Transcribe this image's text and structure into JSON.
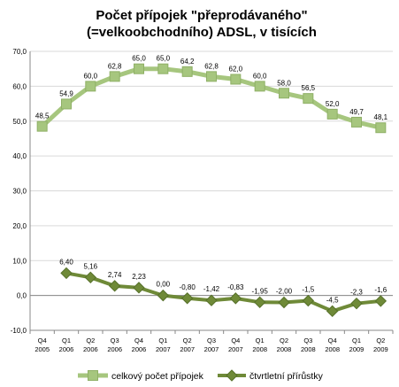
{
  "chart_data": {
    "type": "line",
    "title": [
      "Počet  přípojek \"přeprodávaného\"",
      "(=velkoobchodního) ADSL, v tisících"
    ],
    "categories": [
      [
        "Q4",
        "2005"
      ],
      [
        "Q1",
        "2006"
      ],
      [
        "Q2",
        "2006"
      ],
      [
        "Q3",
        "2006"
      ],
      [
        "Q4",
        "2006"
      ],
      [
        "Q1",
        "2007"
      ],
      [
        "Q2",
        "2007"
      ],
      [
        "Q3",
        "2007"
      ],
      [
        "Q4",
        "2007"
      ],
      [
        "Q1",
        "2008"
      ],
      [
        "Q2",
        "2008"
      ],
      [
        "Q3",
        "2008"
      ],
      [
        "Q4",
        "2008"
      ],
      [
        "Q1",
        "2009"
      ],
      [
        "Q2",
        "2009"
      ]
    ],
    "ylim": [
      -10,
      70
    ],
    "yticks": [
      "-10,0",
      "0,0",
      "10,0",
      "20,0",
      "30,0",
      "40,0",
      "50,0",
      "60,0",
      "70,0"
    ],
    "ytick_values": [
      -10,
      0,
      10,
      20,
      30,
      40,
      50,
      60,
      70
    ],
    "grid": "horizontal",
    "legend_position": "bottom",
    "series": [
      {
        "name": "celkový počet přípojek",
        "color": "#a6c67e",
        "marker": "square",
        "values": [
          48.5,
          54.9,
          60.0,
          62.8,
          65.0,
          65.0,
          64.2,
          62.8,
          62.0,
          60.0,
          58.0,
          56.5,
          52.0,
          49.7,
          48.1
        ],
        "labels": [
          null,
          "54,9",
          "60,0",
          "62,8",
          "65,0",
          "65,0",
          "64,2",
          "62,8",
          "62,0",
          "60,0",
          "58,0",
          "56,5",
          "52,0",
          "49,7",
          "48,1"
        ],
        "first_label": "48,5"
      },
      {
        "name": "čtvrtletní přírůstky",
        "color": "#6f8a38",
        "marker": "diamond",
        "values": [
          null,
          6.4,
          5.16,
          2.74,
          2.23,
          0.0,
          -0.8,
          -1.42,
          -0.83,
          -1.95,
          -2.0,
          -1.5,
          -4.5,
          -2.3,
          -1.6
        ],
        "labels": [
          null,
          "6,40",
          "5,16",
          "2,74",
          "2,23",
          "0,00",
          "-0,80",
          "-1,42",
          "-0,83",
          "-1,95",
          "-2,00",
          "-1,5",
          "-4,5",
          "-2,3",
          "-1,6"
        ]
      }
    ]
  }
}
